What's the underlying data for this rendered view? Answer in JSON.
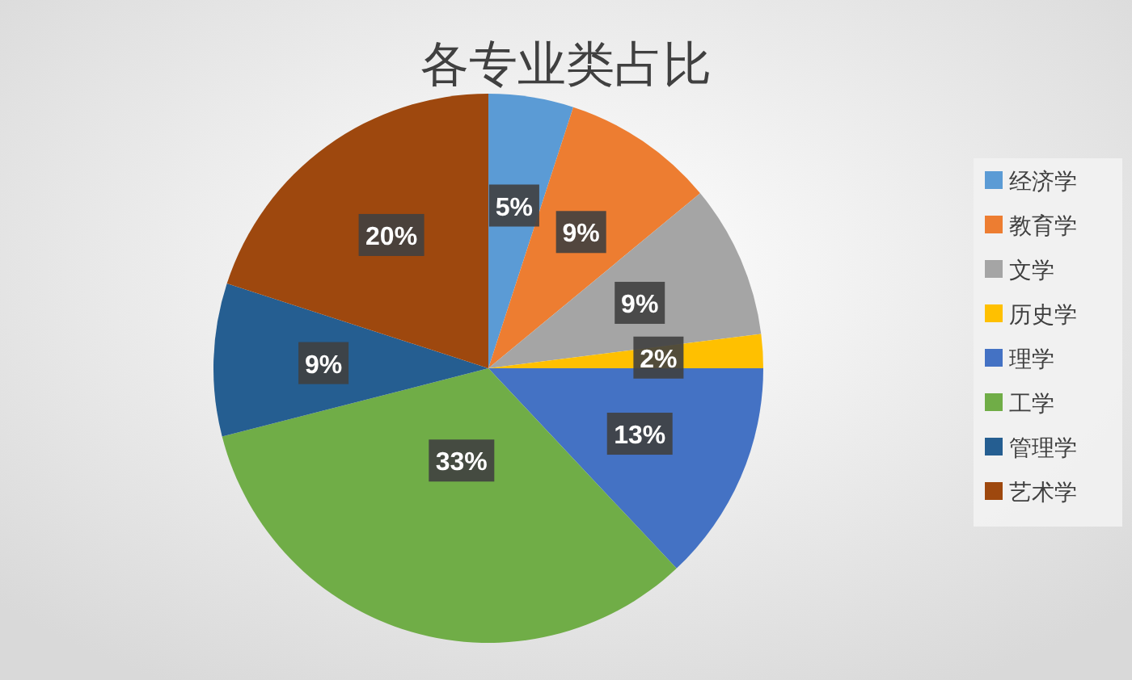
{
  "chart_data": {
    "type": "pie",
    "title": "各专业类占比",
    "categories": [
      "经济学",
      "教育学",
      "文学",
      "历史学",
      "理学",
      "工学",
      "管理学",
      "艺术学"
    ],
    "values": [
      5,
      9,
      9,
      2,
      13,
      33,
      9,
      20
    ],
    "colors": [
      "#5b9bd5",
      "#ed7d31",
      "#a5a5a5",
      "#ffc000",
      "#4472c4",
      "#70ad47",
      "#255e91",
      "#9e480e"
    ],
    "value_labels": [
      "5%",
      "9%",
      "9%",
      "2%",
      "13%",
      "33%",
      "9%",
      "20%"
    ],
    "legend": "right"
  }
}
